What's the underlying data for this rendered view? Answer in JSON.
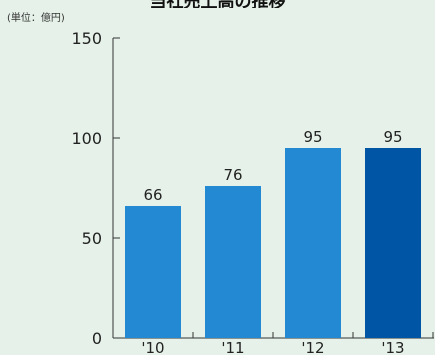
{
  "chart_data": {
    "type": "bar",
    "title": "当社売上高の推移",
    "unit_label": "(単位：億円)",
    "categories": [
      "'10",
      "'11",
      "'12",
      "'13"
    ],
    "values": [
      66,
      76,
      95,
      95
    ],
    "ylim": [
      0,
      150
    ],
    "yticks": [
      0,
      50,
      100,
      150
    ],
    "grid": false,
    "colors": {
      "bar": "#2389d3",
      "bar_highlight": "#0055a5",
      "axis": "#333333",
      "background": "#e6f2e9"
    }
  }
}
